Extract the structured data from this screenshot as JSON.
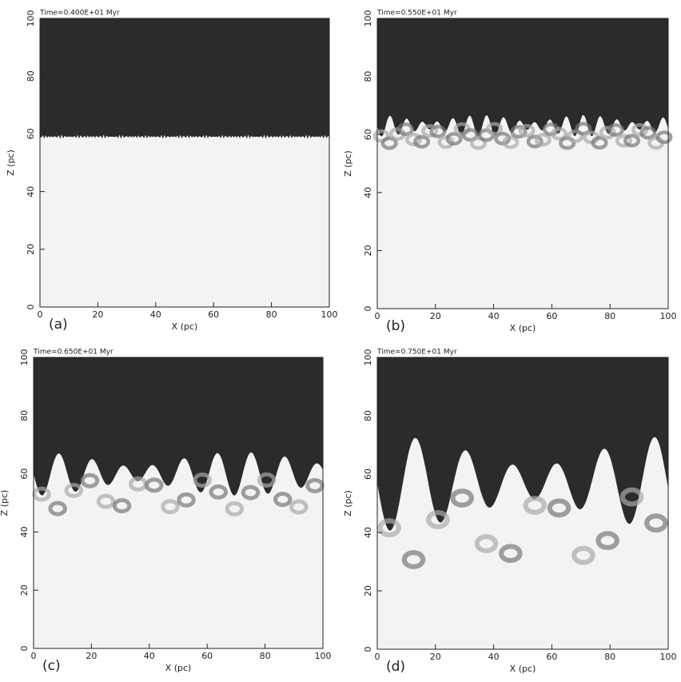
{
  "chart_data": [
    {
      "type": "heatmap",
      "title": "Time=0.400E+01 Myr",
      "panel_label": "(a)",
      "xlabel": "X (pc)",
      "ylabel": "Z (pc)",
      "xlim": [
        0,
        100
      ],
      "ylim": [
        0,
        100
      ],
      "xticks": [
        0,
        20,
        40,
        60,
        80,
        100
      ],
      "yticks": [
        0,
        20,
        40,
        60,
        80,
        100
      ]
    },
    {
      "type": "heatmap",
      "title": "Time=0.550E+01 Myr",
      "panel_label": "(b)",
      "xlabel": "X (pc)",
      "ylabel": "Z (pc)",
      "xlim": [
        0,
        100
      ],
      "ylim": [
        0,
        100
      ],
      "xticks": [
        0,
        20,
        40,
        60,
        80,
        100
      ],
      "yticks": [
        0,
        20,
        40,
        60,
        80,
        100
      ]
    },
    {
      "type": "heatmap",
      "title": "Time=0.650E+01 Myr",
      "panel_label": "(c)",
      "xlabel": "X (pc)",
      "ylabel": "Z (pc)",
      "xlim": [
        0,
        100
      ],
      "ylim": [
        0,
        100
      ],
      "xticks": [
        0,
        20,
        40,
        60,
        80,
        100
      ],
      "yticks": [
        0,
        20,
        40,
        60,
        80,
        100
      ]
    },
    {
      "type": "heatmap",
      "title": "Time=0.750E+01 Myr",
      "panel_label": "(d)",
      "xlabel": "X (pc)",
      "ylabel": "Z (pc)",
      "xlim": [
        0,
        100
      ],
      "ylim": [
        0,
        100
      ],
      "xticks": [
        0,
        20,
        40,
        60,
        80,
        100
      ],
      "yticks": [
        0,
        20,
        40,
        60,
        80,
        100
      ]
    }
  ]
}
